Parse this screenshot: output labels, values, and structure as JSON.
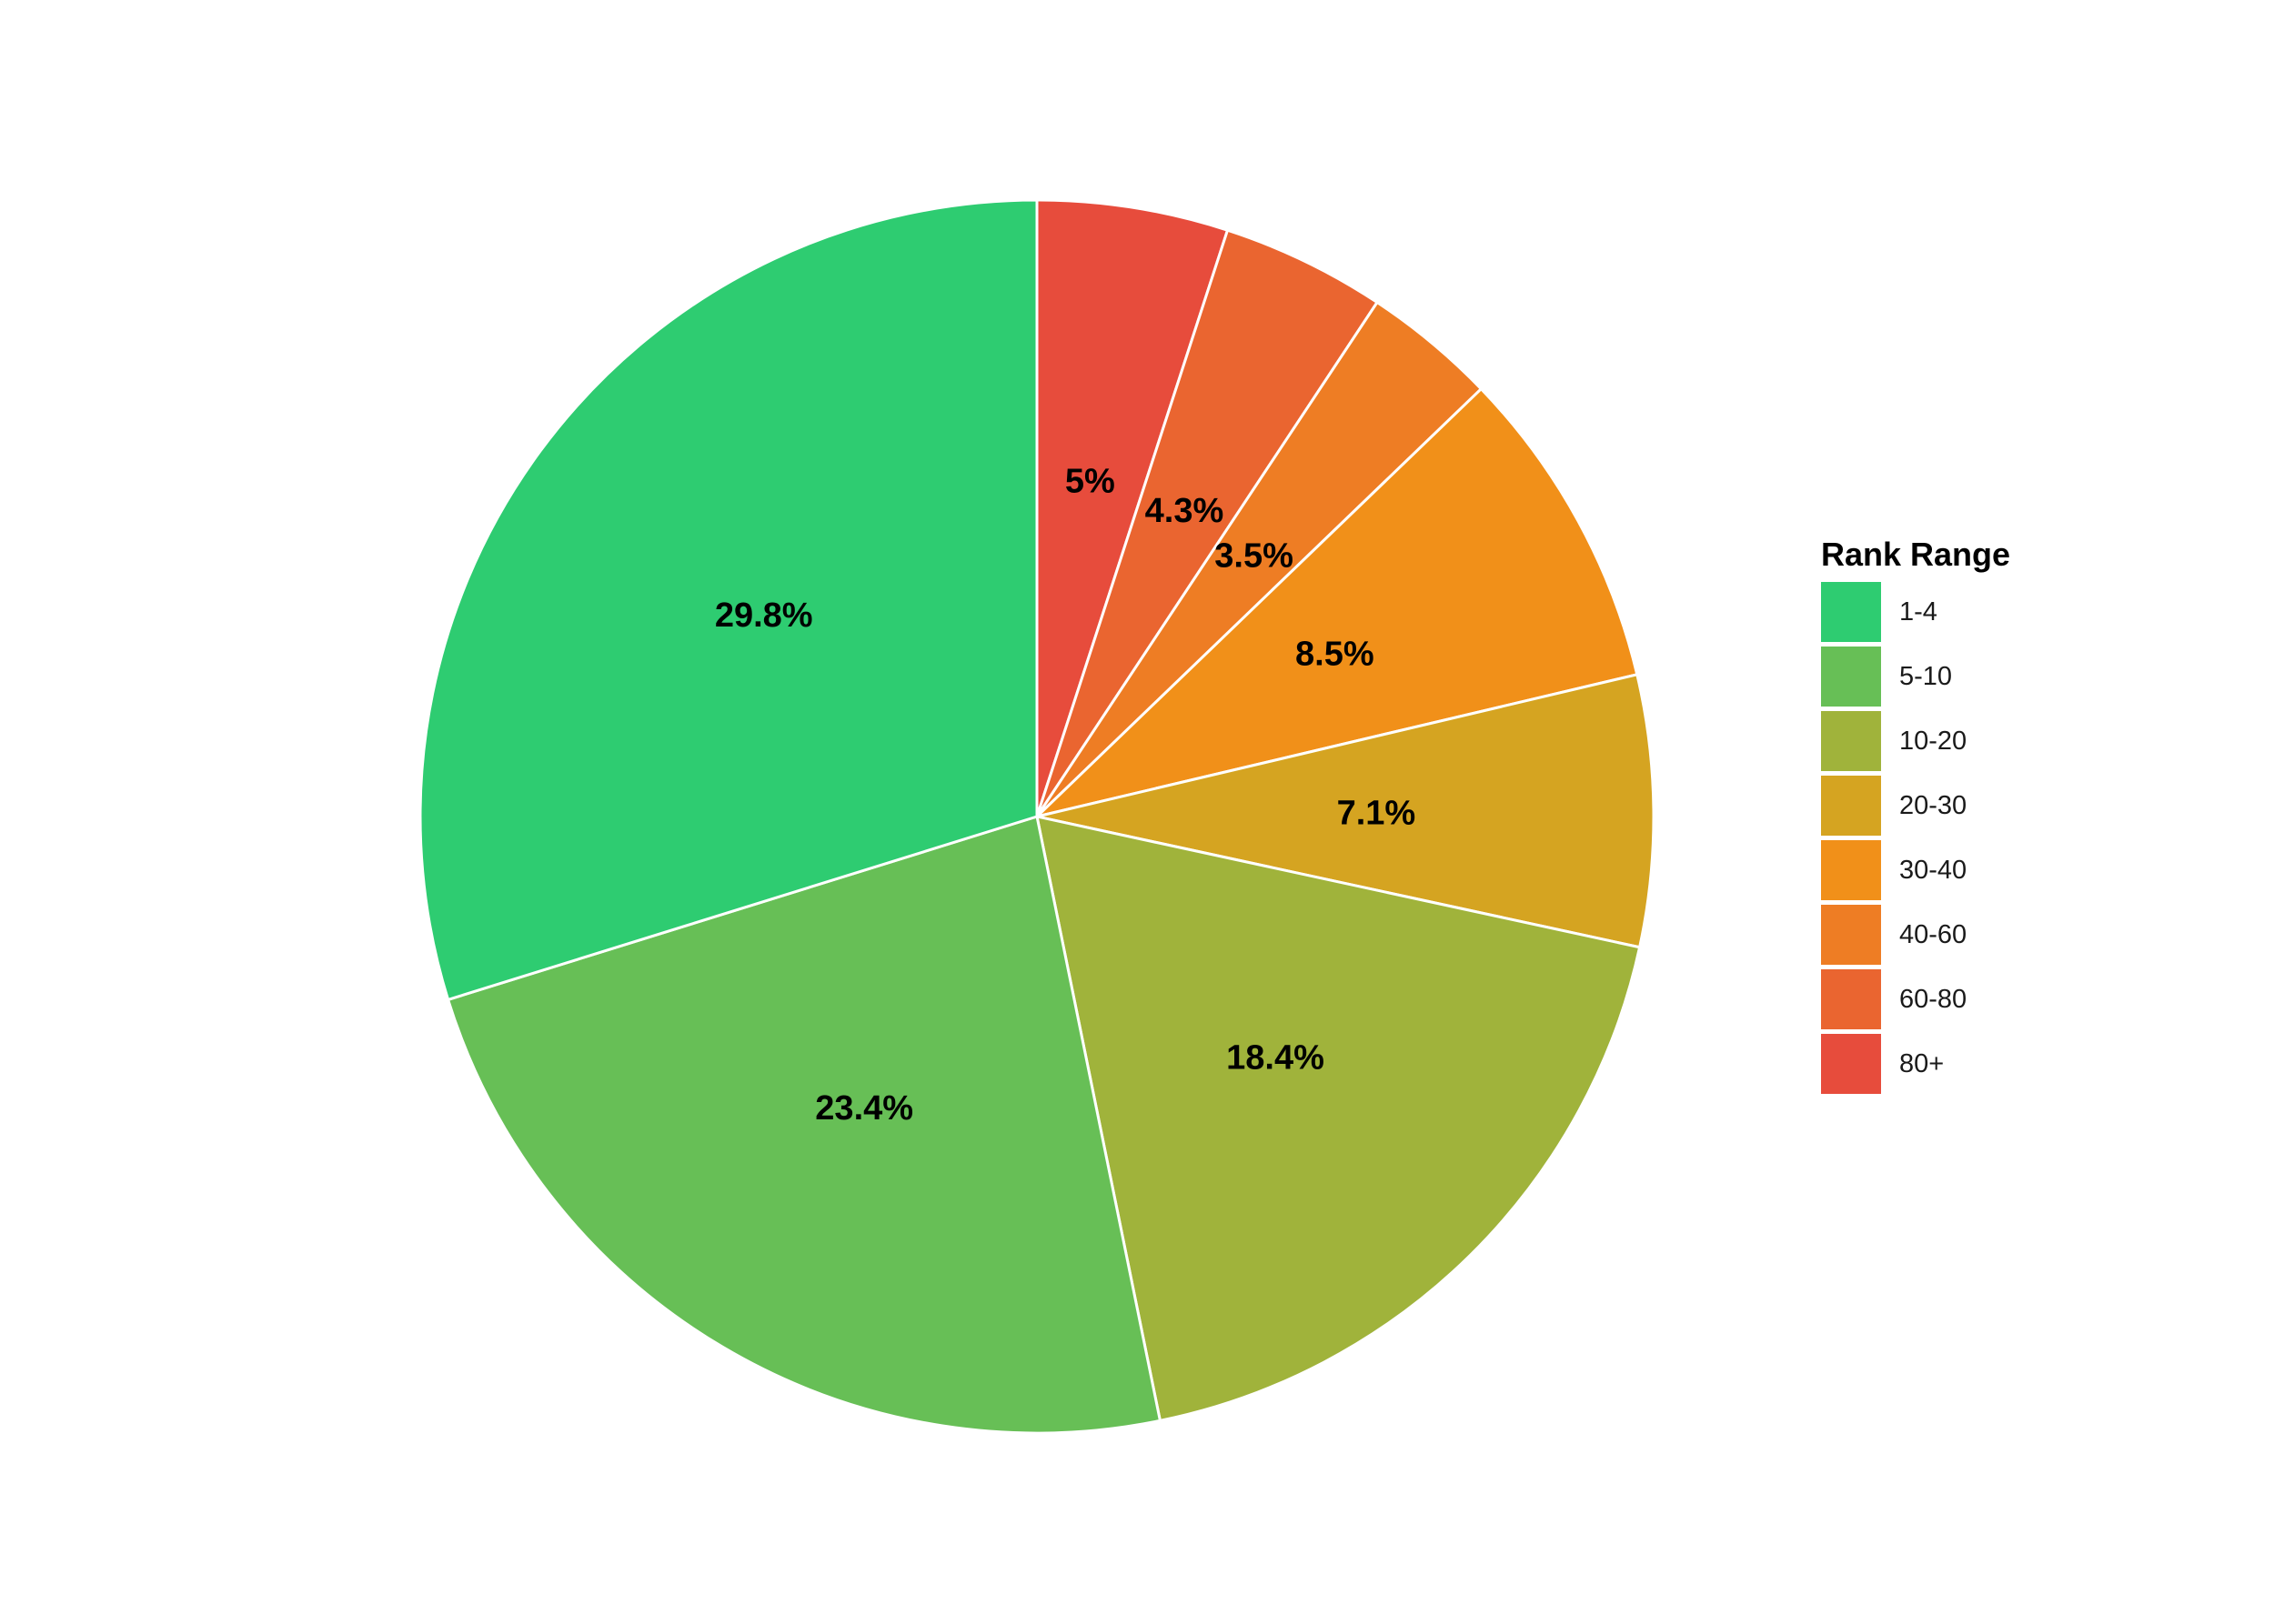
{
  "chart_data": {
    "type": "pie",
    "legend": {
      "title": "Rank Range",
      "placement": "right"
    },
    "start_angle_deg": 0,
    "direction": "clockwise",
    "slices": [
      {
        "category": "1-4",
        "value": 29.8,
        "label": "29.8%",
        "color": "#2ECC71"
      },
      {
        "category": "5-10",
        "value": 23.4,
        "label": "23.4%",
        "color": "#67BF56"
      },
      {
        "category": "10-20",
        "value": 18.4,
        "label": "18.4%",
        "color": "#A0B33B"
      },
      {
        "category": "20-30",
        "value": 7.1,
        "label": "7.1%",
        "color": "#D5A421"
      },
      {
        "category": "30-40",
        "value": 8.5,
        "label": "8.5%",
        "color": "#F19019"
      },
      {
        "category": "40-60",
        "value": 3.5,
        "label": "3.5%",
        "color": "#EE7D24"
      },
      {
        "category": "60-80",
        "value": 4.3,
        "label": "4.3%",
        "color": "#EA6530"
      },
      {
        "category": "80+",
        "value": 5.0,
        "label": "5%",
        "color": "#E74C3C"
      }
    ],
    "draw_order": [
      "80+",
      "60-80",
      "40-60",
      "30-40",
      "20-30",
      "10-20",
      "5-10",
      "1-4"
    ]
  }
}
